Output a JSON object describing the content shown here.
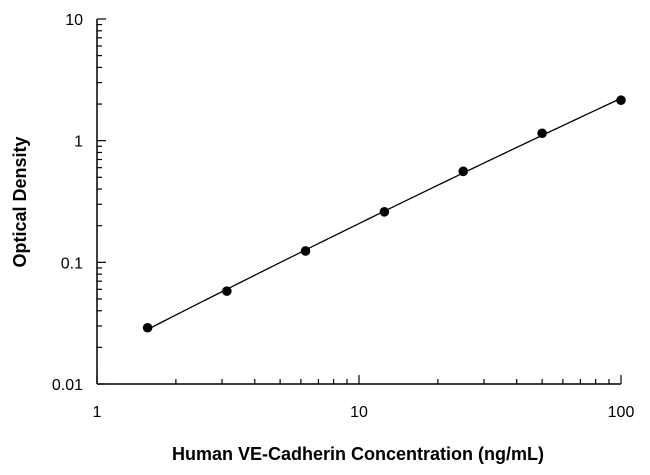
{
  "chart_data": {
    "type": "scatter",
    "title": "",
    "xlabel": "Human VE-Cadherin Concentration (ng/mL)",
    "ylabel": "Optical Density",
    "x_scale": "log",
    "y_scale": "log",
    "xlim": [
      1,
      100
    ],
    "ylim": [
      0.01,
      10
    ],
    "x_ticks": [
      {
        "value": 1,
        "label": "1"
      },
      {
        "value": 10,
        "label": "10"
      },
      {
        "value": 100,
        "label": "100"
      }
    ],
    "y_ticks": [
      {
        "value": 0.01,
        "label": "0.01"
      },
      {
        "value": 0.1,
        "label": "0.1"
      },
      {
        "value": 1,
        "label": "1"
      },
      {
        "value": 10,
        "label": "10"
      }
    ],
    "grid": false,
    "legend": "none",
    "fit_curve": true,
    "marker_color": "#000000",
    "line_color": "#000000",
    "series": [
      {
        "x": [
          1.56,
          3.13,
          6.25,
          12.5,
          25,
          50,
          100
        ],
        "y": [
          0.029,
          0.058,
          0.124,
          0.26,
          0.56,
          1.15,
          2.15
        ]
      }
    ]
  }
}
